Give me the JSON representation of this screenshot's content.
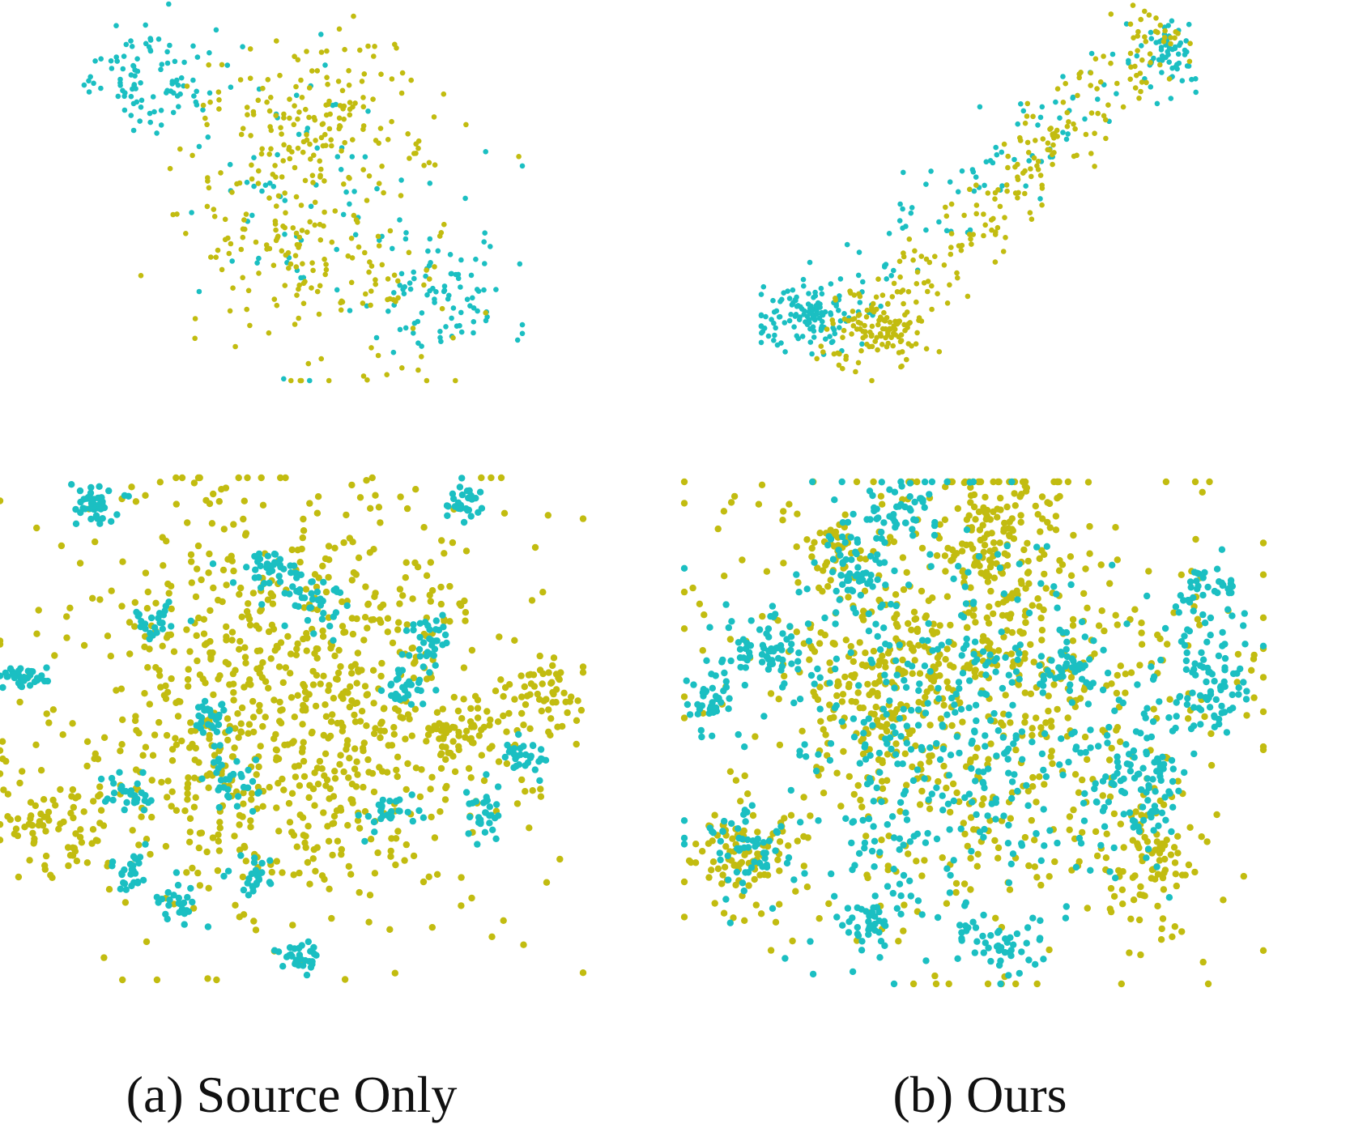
{
  "captions": {
    "a": "(a) Source Only",
    "b": "(b) Ours"
  },
  "colors": {
    "domain_1": "#1bbfc2",
    "domain_2": "#c2bc10",
    "background": "#ffffff",
    "caption_text": "#111111"
  },
  "chart_data": [
    {
      "type": "scatter",
      "panel": "a-top",
      "title": "",
      "xlabel": "",
      "ylabel": "",
      "grid": false,
      "axes_visible": false,
      "xlim": [
        0,
        100
      ],
      "ylim": [
        0,
        100
      ],
      "series": [
        {
          "color": "#1bbfc2",
          "clusters": [
            {
              "cx": 17,
              "cy": 80,
              "sx": 9,
              "sy": 7,
              "n": 95
            },
            {
              "cx": 82,
              "cy": 24,
              "sx": 8,
              "sy": 9,
              "n": 85
            },
            {
              "cx": 50,
              "cy": 48,
              "sx": 15,
              "sy": 18,
              "n": 75
            }
          ]
        },
        {
          "color": "#c2bc10",
          "clusters": [
            {
              "cx": 55,
              "cy": 70,
              "sx": 14,
              "sy": 11,
              "n": 150
            },
            {
              "cx": 55,
              "cy": 28,
              "sx": 14,
              "sy": 15,
              "n": 140
            },
            {
              "cx": 43,
              "cy": 48,
              "sx": 11,
              "sy": 13,
              "n": 60
            }
          ]
        }
      ]
    },
    {
      "type": "scatter",
      "panel": "b-top",
      "title": "",
      "xlabel": "",
      "ylabel": "",
      "grid": false,
      "axes_visible": false,
      "xlim": [
        0,
        100
      ],
      "ylim": [
        0,
        100
      ],
      "series": [
        {
          "color": "#1bbfc2",
          "band": {
            "x0": 2,
            "y0": 6,
            "x1": 96,
            "y1": 92,
            "spread": 5,
            "offset": 2.5
          },
          "clusters": [
            {
              "cx": 12,
              "cy": 17,
              "sx": 6,
              "sy": 4,
              "n": 110
            },
            {
              "cx": 92,
              "cy": 88,
              "sx": 3,
              "sy": 5,
              "n": 45
            }
          ],
          "n": 120
        },
        {
          "color": "#c2bc10",
          "band": {
            "x0": 14,
            "y0": 3,
            "x1": 90,
            "y1": 96,
            "spread": 5,
            "offset": -2.5
          },
          "clusters": [
            {
              "cx": 28,
              "cy": 15,
              "sx": 6,
              "sy": 5,
              "n": 90
            }
          ],
          "n": 230
        }
      ]
    },
    {
      "type": "scatter",
      "panel": "a-bottom",
      "title": "",
      "xlabel": "",
      "ylabel": "",
      "grid": false,
      "axes_visible": false,
      "xlim": [
        0,
        100
      ],
      "ylim": [
        0,
        100
      ],
      "series": [
        {
          "color": "#c2bc10",
          "clusters": [
            {
              "cx": 50,
              "cy": 55,
              "sx": 20,
              "sy": 22,
              "n": 900
            },
            {
              "cx": 10,
              "cy": 30,
              "sx": 5,
              "sy": 5,
              "n": 70
            },
            {
              "cx": 94,
              "cy": 57,
              "sx": 3,
              "sy": 4,
              "n": 45
            },
            {
              "cx": 78,
              "cy": 48,
              "sx": 4,
              "sy": 4,
              "n": 55
            }
          ]
        },
        {
          "color": "#1bbfc2",
          "clusters": [
            {
              "cx": 16,
              "cy": 95,
              "sx": 2,
              "sy": 2,
              "n": 45
            },
            {
              "cx": 4,
              "cy": 60,
              "sx": 2,
              "sy": 1,
              "n": 35
            },
            {
              "cx": 80,
              "cy": 95,
              "sx": 1.5,
              "sy": 2,
              "n": 30
            },
            {
              "cx": 47,
              "cy": 82,
              "sx": 4,
              "sy": 2,
              "n": 40
            },
            {
              "cx": 54,
              "cy": 75,
              "sx": 3,
              "sy": 3,
              "n": 35
            },
            {
              "cx": 27,
              "cy": 72,
              "sx": 2,
              "sy": 2,
              "n": 25
            },
            {
              "cx": 73,
              "cy": 67,
              "sx": 2,
              "sy": 3,
              "n": 35
            },
            {
              "cx": 70,
              "cy": 58,
              "sx": 2,
              "sy": 2,
              "n": 30
            },
            {
              "cx": 35,
              "cy": 52,
              "sx": 2,
              "sy": 2,
              "n": 30
            },
            {
              "cx": 39,
              "cy": 40,
              "sx": 2,
              "sy": 3,
              "n": 35
            },
            {
              "cx": 22,
              "cy": 37,
              "sx": 2,
              "sy": 2,
              "n": 30
            },
            {
              "cx": 90,
              "cy": 45,
              "sx": 2,
              "sy": 1.5,
              "n": 30
            },
            {
              "cx": 67,
              "cy": 33,
              "sx": 3,
              "sy": 2,
              "n": 30
            },
            {
              "cx": 83,
              "cy": 34,
              "sx": 1.5,
              "sy": 3,
              "n": 30
            },
            {
              "cx": 22,
              "cy": 21,
              "sx": 2,
              "sy": 2,
              "n": 25
            },
            {
              "cx": 30,
              "cy": 16,
              "sx": 2,
              "sy": 2,
              "n": 25
            },
            {
              "cx": 44,
              "cy": 20,
              "sx": 2,
              "sy": 2,
              "n": 25
            },
            {
              "cx": 52,
              "cy": 5,
              "sx": 2,
              "sy": 1.5,
              "n": 30
            }
          ]
        }
      ]
    },
    {
      "type": "scatter",
      "panel": "b-bottom",
      "title": "",
      "xlabel": "",
      "ylabel": "",
      "grid": false,
      "axes_visible": false,
      "xlim": [
        0,
        100
      ],
      "ylim": [
        0,
        100
      ],
      "series": [
        {
          "color": "#c2bc10",
          "clusters": [
            {
              "cx": 50,
              "cy": 55,
              "sx": 22,
              "sy": 24,
              "n": 650
            },
            {
              "cx": 55,
              "cy": 85,
              "sx": 6,
              "sy": 10,
              "n": 160
            },
            {
              "cx": 10,
              "cy": 25,
              "sx": 5,
              "sy": 5,
              "n": 90
            },
            {
              "cx": 35,
              "cy": 62,
              "sx": 8,
              "sy": 10,
              "n": 120
            },
            {
              "cx": 81,
              "cy": 25,
              "sx": 4,
              "sy": 8,
              "n": 80
            },
            {
              "cx": 26,
              "cy": 87,
              "sx": 3,
              "sy": 3,
              "n": 40
            }
          ]
        },
        {
          "color": "#1bbfc2",
          "clusters": [
            {
              "cx": 45,
              "cy": 50,
              "sx": 18,
              "sy": 20,
              "n": 450
            },
            {
              "cx": 30,
              "cy": 83,
              "sx": 3,
              "sy": 4,
              "n": 55
            },
            {
              "cx": 38,
              "cy": 93,
              "sx": 3,
              "sy": 3,
              "n": 45
            },
            {
              "cx": 14,
              "cy": 66,
              "sx": 4,
              "sy": 4,
              "n": 60
            },
            {
              "cx": 5,
              "cy": 58,
              "sx": 2,
              "sy": 3,
              "n": 35
            },
            {
              "cx": 90,
              "cy": 60,
              "sx": 4,
              "sy": 6,
              "n": 85
            },
            {
              "cx": 78,
              "cy": 40,
              "sx": 5,
              "sy": 6,
              "n": 90
            },
            {
              "cx": 90,
              "cy": 78,
              "sx": 3,
              "sy": 3,
              "n": 40
            },
            {
              "cx": 11,
              "cy": 27,
              "sx": 3,
              "sy": 4,
              "n": 50
            },
            {
              "cx": 54,
              "cy": 8,
              "sx": 4,
              "sy": 3,
              "n": 40
            },
            {
              "cx": 31,
              "cy": 12,
              "sx": 3,
              "sy": 3,
              "n": 40
            },
            {
              "cx": 67,
              "cy": 63,
              "sx": 3,
              "sy": 3,
              "n": 35
            }
          ]
        }
      ]
    }
  ]
}
